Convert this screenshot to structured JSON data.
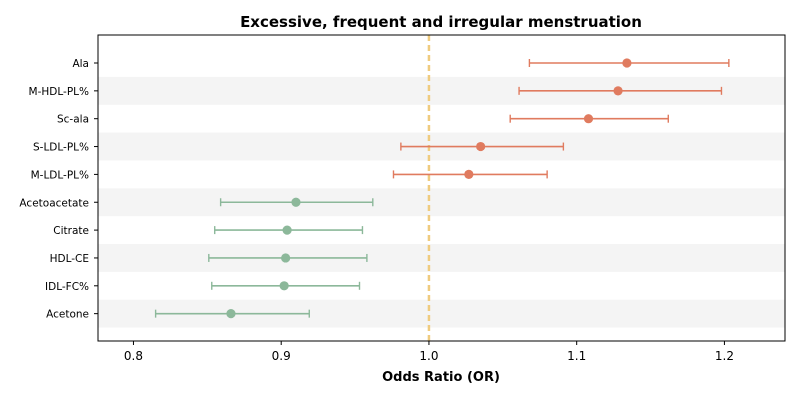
{
  "chart_data": {
    "type": "forest",
    "title": "Excessive, frequent and irregular menstruation",
    "xlabel": "Odds Ratio (OR)",
    "ylabel": "",
    "xlim": [
      0.776,
      1.241
    ],
    "xticks": [
      0.8,
      0.9,
      1.0,
      1.1,
      1.2
    ],
    "xtick_labels": [
      "0.8",
      "0.9",
      "1.0",
      "1.1",
      "1.2"
    ],
    "reference_line": 1.0,
    "grid": false,
    "row_banding": true,
    "colors": {
      "positive": "#E07B5F",
      "negative": "#8CB89A",
      "reference": "#EFCB7F",
      "band": "#F4F4F4",
      "axis": "#000000"
    },
    "rows": [
      {
        "label": "Ala",
        "or": 1.134,
        "ci_low": 1.068,
        "ci_high": 1.203,
        "direction": "positive"
      },
      {
        "label": "M-HDL-PL%",
        "or": 1.128,
        "ci_low": 1.061,
        "ci_high": 1.198,
        "direction": "positive"
      },
      {
        "label": "Sc-ala",
        "or": 1.108,
        "ci_low": 1.055,
        "ci_high": 1.162,
        "direction": "positive"
      },
      {
        "label": "S-LDL-PL%",
        "or": 1.035,
        "ci_low": 0.981,
        "ci_high": 1.091,
        "direction": "positive"
      },
      {
        "label": "M-LDL-PL%",
        "or": 1.027,
        "ci_low": 0.976,
        "ci_high": 1.08,
        "direction": "positive"
      },
      {
        "label": "Acetoacetate",
        "or": 0.91,
        "ci_low": 0.859,
        "ci_high": 0.962,
        "direction": "negative"
      },
      {
        "label": "Citrate",
        "or": 0.904,
        "ci_low": 0.855,
        "ci_high": 0.955,
        "direction": "negative"
      },
      {
        "label": "HDL-CE",
        "or": 0.903,
        "ci_low": 0.851,
        "ci_high": 0.958,
        "direction": "negative"
      },
      {
        "label": "IDL-FC%",
        "or": 0.902,
        "ci_low": 0.853,
        "ci_high": 0.953,
        "direction": "negative"
      },
      {
        "label": "Acetone",
        "or": 0.866,
        "ci_low": 0.815,
        "ci_high": 0.919,
        "direction": "negative"
      }
    ]
  }
}
